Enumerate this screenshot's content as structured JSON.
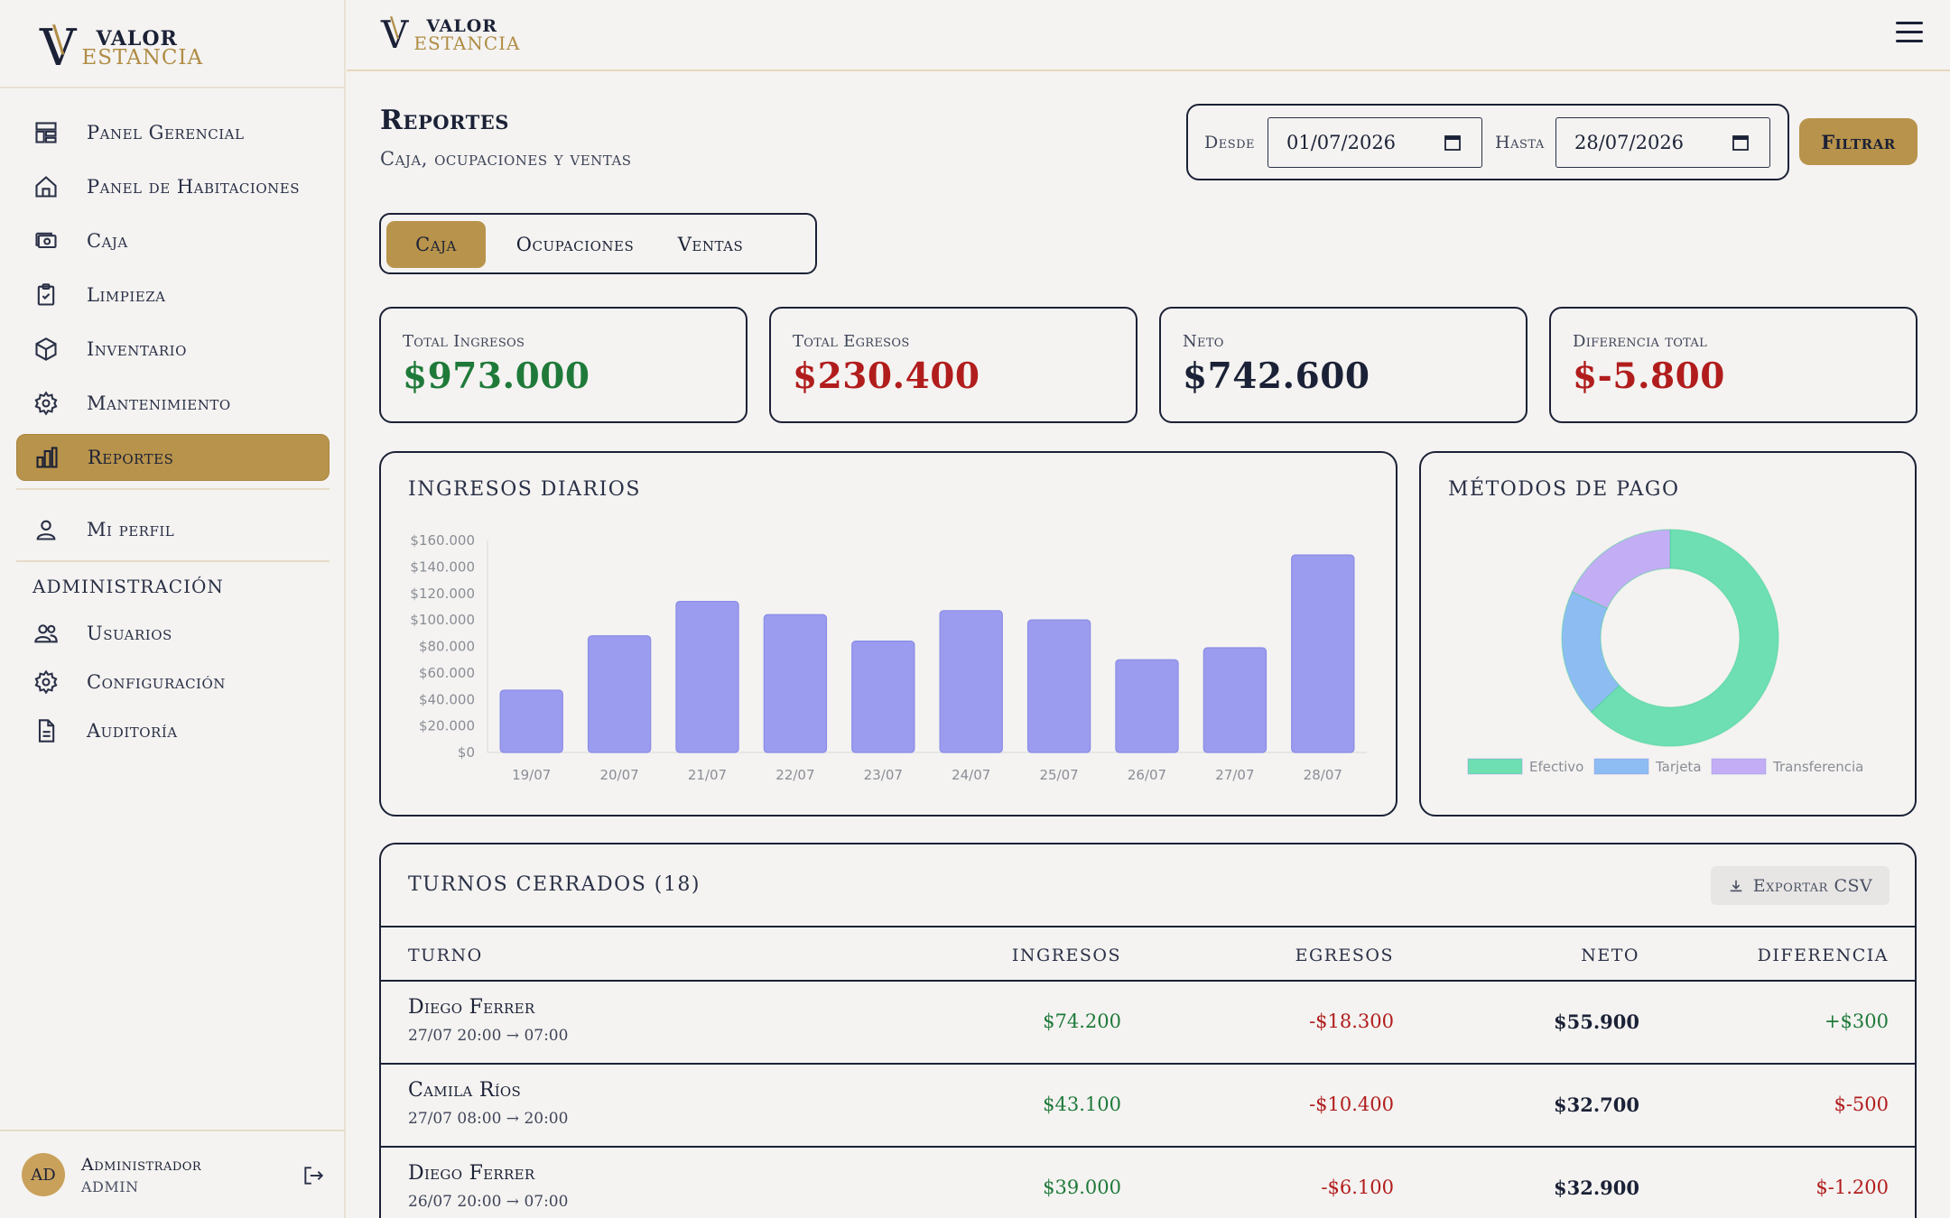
{
  "brand": {
    "word1": "VALOR",
    "word2": "ESTANCIA"
  },
  "sidebar": {
    "items": [
      {
        "label": "Panel Gerencial",
        "icon": "dashboard-icon"
      },
      {
        "label": "Panel de Habitaciones",
        "icon": "home-icon"
      },
      {
        "label": "Caja",
        "icon": "cash-icon"
      },
      {
        "label": "Limpieza",
        "icon": "clipboard-check-icon"
      },
      {
        "label": "Inventario",
        "icon": "box-icon"
      },
      {
        "label": "Mantenimiento",
        "icon": "gear-icon"
      },
      {
        "label": "Reportes",
        "icon": "bar-chart-icon",
        "active": true
      },
      {
        "label": "Mi perfil",
        "icon": "user-icon"
      }
    ],
    "admin_section": "ADMINISTRACIÓN",
    "admin_items": [
      {
        "label": "Usuarios",
        "icon": "users-icon"
      },
      {
        "label": "Configuración",
        "icon": "gear-icon"
      },
      {
        "label": "Auditoría",
        "icon": "document-icon"
      }
    ],
    "user": {
      "initials": "AD",
      "name": "Administrador",
      "role": "ADMIN"
    }
  },
  "header": {
    "menu_icon": "hamburger-icon"
  },
  "page": {
    "title": "Reportes",
    "subtitle": "Caja, ocupaciones y ventas"
  },
  "filter": {
    "from_label": "Desde",
    "from_value": "01/07/2026",
    "to_label": "Hasta",
    "to_value": "28/07/2026",
    "button": "Filtrar"
  },
  "tabs": [
    {
      "label": "Caja",
      "active": true
    },
    {
      "label": "Ocupaciones"
    },
    {
      "label": "Ventas"
    }
  ],
  "cards": [
    {
      "label": "Total Ingresos",
      "value": "$973.000",
      "color": "#1f7a3a"
    },
    {
      "label": "Total Egresos",
      "value": "$230.400",
      "color": "#b11d1d"
    },
    {
      "label": "Neto",
      "value": "$742.600",
      "color": "#1b2136"
    },
    {
      "label": "Diferencia total",
      "value": "$-5.800",
      "color": "#b11d1d"
    }
  ],
  "bar_panel_title": "INGRESOS DIARIOS",
  "pie_panel_title": "MÉTODOS DE PAGO",
  "chart_data": [
    {
      "type": "bar",
      "title": "INGRESOS DIARIOS",
      "categories": [
        "19/07",
        "20/07",
        "21/07",
        "22/07",
        "23/07",
        "24/07",
        "25/07",
        "26/07",
        "27/07",
        "28/07"
      ],
      "values": [
        47000,
        88000,
        114000,
        104000,
        84000,
        107000,
        100000,
        70000,
        79000,
        149000
      ],
      "ylim": [
        0,
        160000
      ],
      "yticks": [
        "$0",
        "$20.000",
        "$40.000",
        "$60.000",
        "$80.000",
        "$100.000",
        "$120.000",
        "$140.000",
        "$160.000"
      ],
      "color": "#9b9cef",
      "grid": false
    },
    {
      "type": "pie",
      "title": "MÉTODOS DE PAGO",
      "donut": true,
      "labels": [
        "Efectivo",
        "Tarjeta",
        "Transferencia"
      ],
      "values": [
        63,
        19,
        18
      ],
      "colors": [
        "#6ddfb2",
        "#8dbcf2",
        "#c3aef5"
      ],
      "legend": "bottom"
    }
  ],
  "table": {
    "title": "TURNOS CERRADOS (18)",
    "export_label": "Exportar CSV",
    "columns": [
      "TURNO",
      "INGRESOS",
      "EGRESOS",
      "NETO",
      "DIFERENCIA"
    ],
    "rows": [
      {
        "name": "Diego Ferrer",
        "time": "27/07 20:00 → 07:00",
        "ingresos": "$74.200",
        "egresos": "-$18.300",
        "neto": "$55.900",
        "diferencia": "+$300",
        "dif_positive": true
      },
      {
        "name": "Camila Ríos",
        "time": "27/07 08:00 → 20:00",
        "ingresos": "$43.100",
        "egresos": "-$10.400",
        "neto": "$32.700",
        "diferencia": "$-500",
        "dif_positive": false
      },
      {
        "name": "Diego Ferrer",
        "time": "26/07 20:00 → 07:00",
        "ingresos": "$39.000",
        "egresos": "-$6.100",
        "neto": "$32.900",
        "diferencia": "$-1.200",
        "dif_positive": false
      }
    ]
  }
}
